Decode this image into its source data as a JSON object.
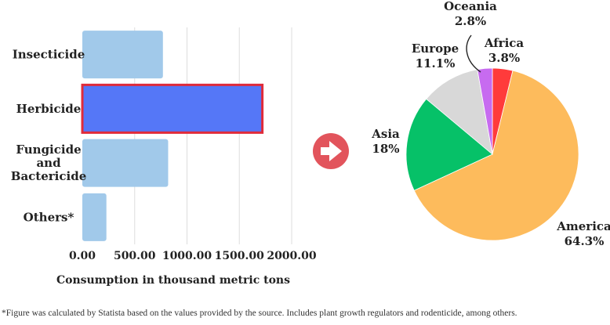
{
  "chart_data": [
    {
      "type": "bar",
      "orientation": "horizontal",
      "categories": [
        "Insecticide",
        "Herbicide",
        "Fungicide and Bactericide",
        "Others*"
      ],
      "category_lines": [
        [
          "Insecticide"
        ],
        [
          "Herbicide"
        ],
        [
          "Fungicide",
          "and",
          "Bactericide"
        ],
        [
          "Others*"
        ]
      ],
      "values": [
        770,
        1720,
        820,
        230
      ],
      "highlighted": "Herbicide",
      "xlabel": "Consumption in thousand metric tons",
      "xlim": [
        0,
        2000
      ],
      "xticks": [
        0,
        500,
        1000,
        1500,
        2000
      ],
      "xtick_labels": [
        "0.00",
        "500.00",
        "1000.00",
        "1500.00",
        "2000.00"
      ],
      "grid": true,
      "colors": {
        "bar": "#a1c9ea",
        "highlight": "#5577f7",
        "highlight_border": "#e02b3a",
        "grid": "#dddddd"
      }
    },
    {
      "type": "pie",
      "slices": [
        {
          "name": "Africa",
          "value": 3.8,
          "label": "3.8%",
          "color": "#ff3b3b"
        },
        {
          "name": "America",
          "value": 64.3,
          "label": "64.3%",
          "color": "#fdbb5c"
        },
        {
          "name": "Asia",
          "value": 18,
          "label": "18%",
          "color": "#06c168"
        },
        {
          "name": "Europe",
          "value": 11.1,
          "label": "11.1%",
          "color": "#d8d8d8"
        },
        {
          "name": "Oceania",
          "value": 2.8,
          "label": "2.8%",
          "color": "#c76bf0"
        }
      ]
    }
  ],
  "arrow": {
    "icon": "arrow-right-icon",
    "color": "#e2545c"
  },
  "footnote": "*Figure was calculated by Statista based on the values provided by the source. Includes plant growth regulators and rodenticide, among others."
}
